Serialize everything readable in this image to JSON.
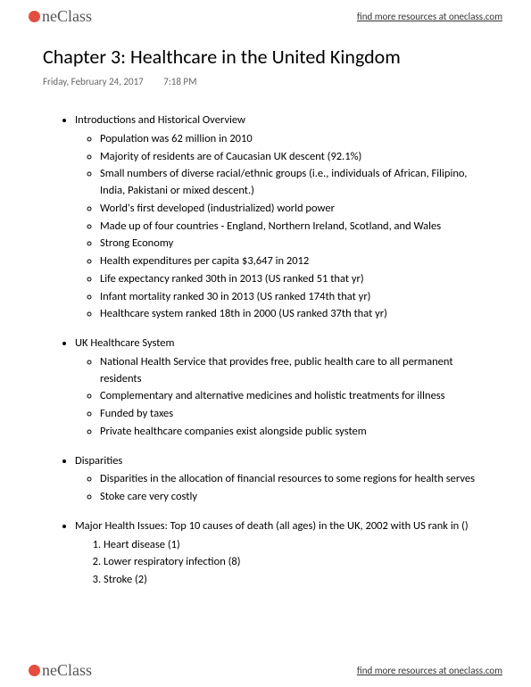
{
  "brand": {
    "name": "neClass",
    "tagline": "find more resources at oneclass.com"
  },
  "title": "Chapter 3: Healthcare in the United Kingdom",
  "meta": {
    "date": "Friday, February 24, 2017",
    "time": "7:18 PM"
  },
  "sections": [
    {
      "heading": "Introductions and Historical Overview",
      "items": [
        "Population was 62 million in 2010",
        "Majority of residents are of Caucasian UK descent (92.1%)",
        "Small numbers of diverse racial/ethnic groups (i.e., individuals of African, Filipino, India, Pakistani or mixed descent.)",
        "World's first developed (industrialized) world power",
        "Made up of four countries - England, Northern Ireland, Scotland, and Wales",
        "Strong Economy",
        "Health expenditures per capita $3,647 in 2012",
        "Life expectancy ranked 30th in 2013 (US ranked 51 that yr)",
        "Infant mortality ranked 30 in 2013 (US ranked 174th that yr)",
        "Healthcare system ranked 18th in 2000 (US ranked 37th that yr)"
      ]
    },
    {
      "heading": "UK Healthcare System",
      "items": [
        "National Health Service that provides free, public health care to all permanent residents",
        "Complementary and alternative medicines and holistic treatments for illness",
        "Funded by taxes",
        "Private healthcare companies exist alongside public system"
      ]
    },
    {
      "heading": "Disparities",
      "items": [
        "Disparities in the allocation of financial resources to some regions for health serves",
        "Stoke care very costly"
      ]
    },
    {
      "heading": "Major Health Issues: Top 10 causes of death (all ages) in the UK, 2002 with US rank in ()",
      "ordered": true,
      "items": [
        "Heart disease (1)",
        "Lower respiratory infection (8)",
        "Stroke (2)"
      ]
    }
  ]
}
